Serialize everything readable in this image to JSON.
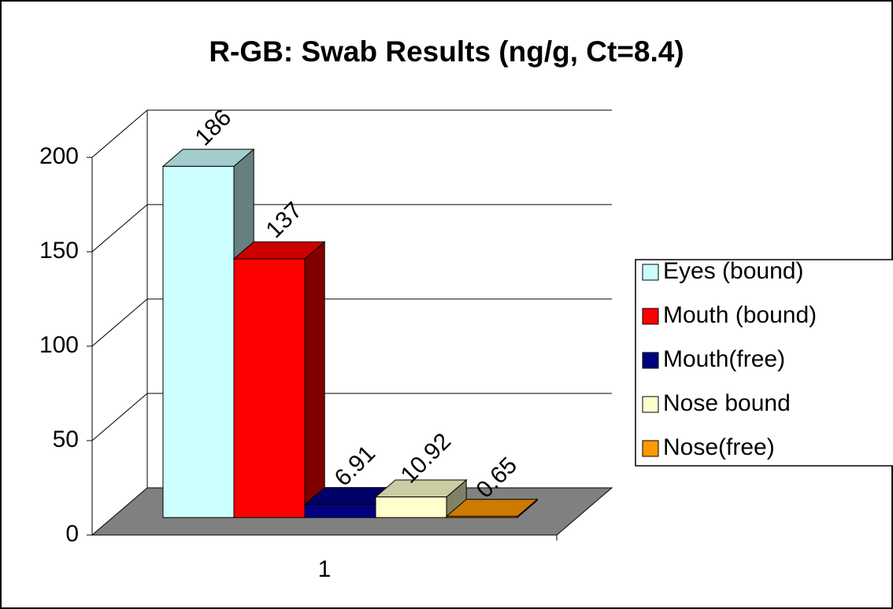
{
  "chart_data": {
    "type": "bar3d",
    "title": "R-GB: Swab Results (ng/g, Ct=8.4)",
    "categories": [
      "1"
    ],
    "series": [
      {
        "name": "Eyes (bound)",
        "color": "#ccffff",
        "values": [
          186
        ]
      },
      {
        "name": "Mouth (bound)",
        "color": "#ff0000",
        "values": [
          137
        ]
      },
      {
        "name": "Mouth(free)",
        "color": "#000080",
        "values": [
          6.91
        ]
      },
      {
        "name": "Nose bound",
        "color": "#ffffcc",
        "values": [
          10.92
        ]
      },
      {
        "name": "Nose(free)",
        "color": "#ff9900",
        "values": [
          0.65
        ]
      }
    ],
    "ylim": [
      0,
      200
    ],
    "yticks": [
      0,
      50,
      100,
      150,
      200
    ],
    "grid": true,
    "legend": "right"
  }
}
